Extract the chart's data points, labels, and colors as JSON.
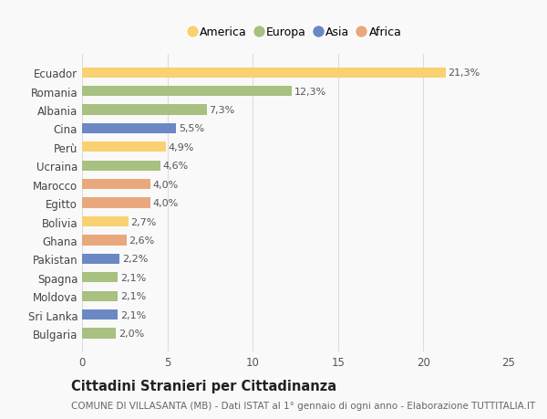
{
  "countries": [
    "Ecuador",
    "Romania",
    "Albania",
    "Cina",
    "Perù",
    "Ucraina",
    "Marocco",
    "Egitto",
    "Bolivia",
    "Ghana",
    "Pakistan",
    "Spagna",
    "Moldova",
    "Sri Lanka",
    "Bulgaria"
  ],
  "values": [
    21.3,
    12.3,
    7.3,
    5.5,
    4.9,
    4.6,
    4.0,
    4.0,
    2.7,
    2.6,
    2.2,
    2.1,
    2.1,
    2.1,
    2.0
  ],
  "labels": [
    "21,3%",
    "12,3%",
    "7,3%",
    "5,5%",
    "4,9%",
    "4,6%",
    "4,0%",
    "4,0%",
    "2,7%",
    "2,6%",
    "2,2%",
    "2,1%",
    "2,1%",
    "2,1%",
    "2,0%"
  ],
  "continents": [
    "America",
    "Europa",
    "Europa",
    "Asia",
    "America",
    "Europa",
    "Africa",
    "Africa",
    "America",
    "Africa",
    "Asia",
    "Europa",
    "Europa",
    "Asia",
    "Europa"
  ],
  "colors": {
    "America": "#F9D171",
    "Europa": "#A8C080",
    "Asia": "#6B88C4",
    "Africa": "#E8A87C"
  },
  "legend_order": [
    "America",
    "Europa",
    "Asia",
    "Africa"
  ],
  "xlim": [
    0,
    25
  ],
  "xticks": [
    0,
    5,
    10,
    15,
    20,
    25
  ],
  "title": "Cittadini Stranieri per Cittadinanza",
  "subtitle": "COMUNE DI VILLASANTA (MB) - Dati ISTAT al 1° gennaio di ogni anno - Elaborazione TUTTITALIA.IT",
  "background_color": "#f9f9f9",
  "bar_height": 0.55,
  "grid_color": "#dddddd",
  "label_fontsize": 8,
  "ytick_fontsize": 8.5,
  "xtick_fontsize": 8.5,
  "title_fontsize": 10.5,
  "subtitle_fontsize": 7.5
}
